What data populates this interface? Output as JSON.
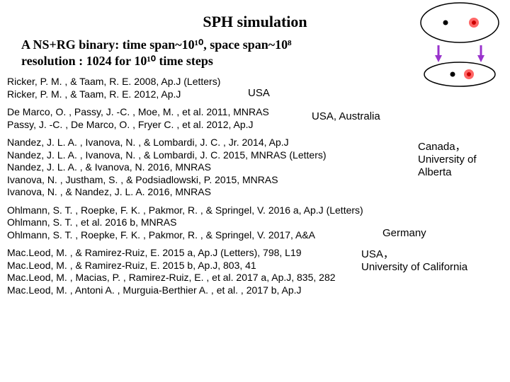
{
  "title": "SPH simulation",
  "subtitle_line1": "A NS+RG binary: time span~10¹⁰, space span~10⁸",
  "subtitle_line2": "resolution : 1024 for 10¹⁰ time steps",
  "blocks": [
    {
      "refs": [
        "Ricker, P. M. , & Taam, R. E. 2008, Ap.J (Letters)",
        "Ricker, P. M. , & Taam, R. E. 2012, Ap.J"
      ],
      "country": "USA",
      "country_style": "left:340px; top:16px;"
    },
    {
      "refs": [
        "De Marco, O. , Passy, J. -C. , Moe, M. , et al. 2011, MNRAS",
        "Passy, J. -C. ,  De Marco, O. , Fryer C. , et al. 2012, Ap.J"
      ],
      "country": "USA, Australia",
      "country_style": "left:430px; top:6px;"
    },
    {
      "refs": [
        "Nandez, J. L. A. , Ivanova, N. , & Lombardi, J. C. , Jr. 2014, Ap.J",
        "Nandez, J. L. A. , Ivanova, N. , & Lombardi, J. C. 2015, MNRAS (Letters)",
        "Nandez, J. L. A. , & Ivanova, N. 2016, MNRAS",
        "Ivanova, N. , Justham, S. , & Podsiadlowski, P. 2015, MNRAS",
        "Ivanova, N. , & Nandez, J. L. A. 2016, MNRAS"
      ],
      "country": "Canada，\nUniversity of\nAlberta",
      "country_style": "left:580px; top:6px; white-space:pre-line; line-height:1.2;"
    },
    {
      "refs": [
        "Ohlmann, S. T. , Roepke, F. K. , Pakmor, R. , & Springel, V. 2016 a, Ap.J (Letters)",
        "Ohlmann, S. T. , et al. 2016 b, MNRAS",
        "Ohlmann, S. T. , Roepke, F. K. , Pakmor, R. , & Springel, V. 2017, A&A"
      ],
      "country": "Germany",
      "country_style": "left:530px; top:32px;"
    },
    {
      "refs": [
        "Mac.Leod, M. , & Ramirez-Ruiz, E. 2015 a, Ap.J (Letters), 798, L19",
        "Mac.Leod, M. , & Ramirez-Ruiz, E. 2015 b, Ap.J, 803, 41",
        "Mac.Leod, M. , Macias, P. , Ramirez-Ruiz, E. , et al. 2017 a, Ap.J, 835, 282",
        "Mac.Leod, M. , Antoni A. , Murguia-Berthier A. , et al. , 2017 b, Ap.J"
      ],
      "country": "USA，\nUniversity of California",
      "country_style": "left:500px; top:2px; white-space:pre-line; line-height:1.2;"
    }
  ],
  "diagram": {
    "ellipse_stroke": "#000000",
    "bg": "#ffffff",
    "ns_color": "#000000",
    "rg_outer": "#ff4d4d",
    "rg_inner": "#e60000",
    "arrow_color": "#9933cc"
  }
}
